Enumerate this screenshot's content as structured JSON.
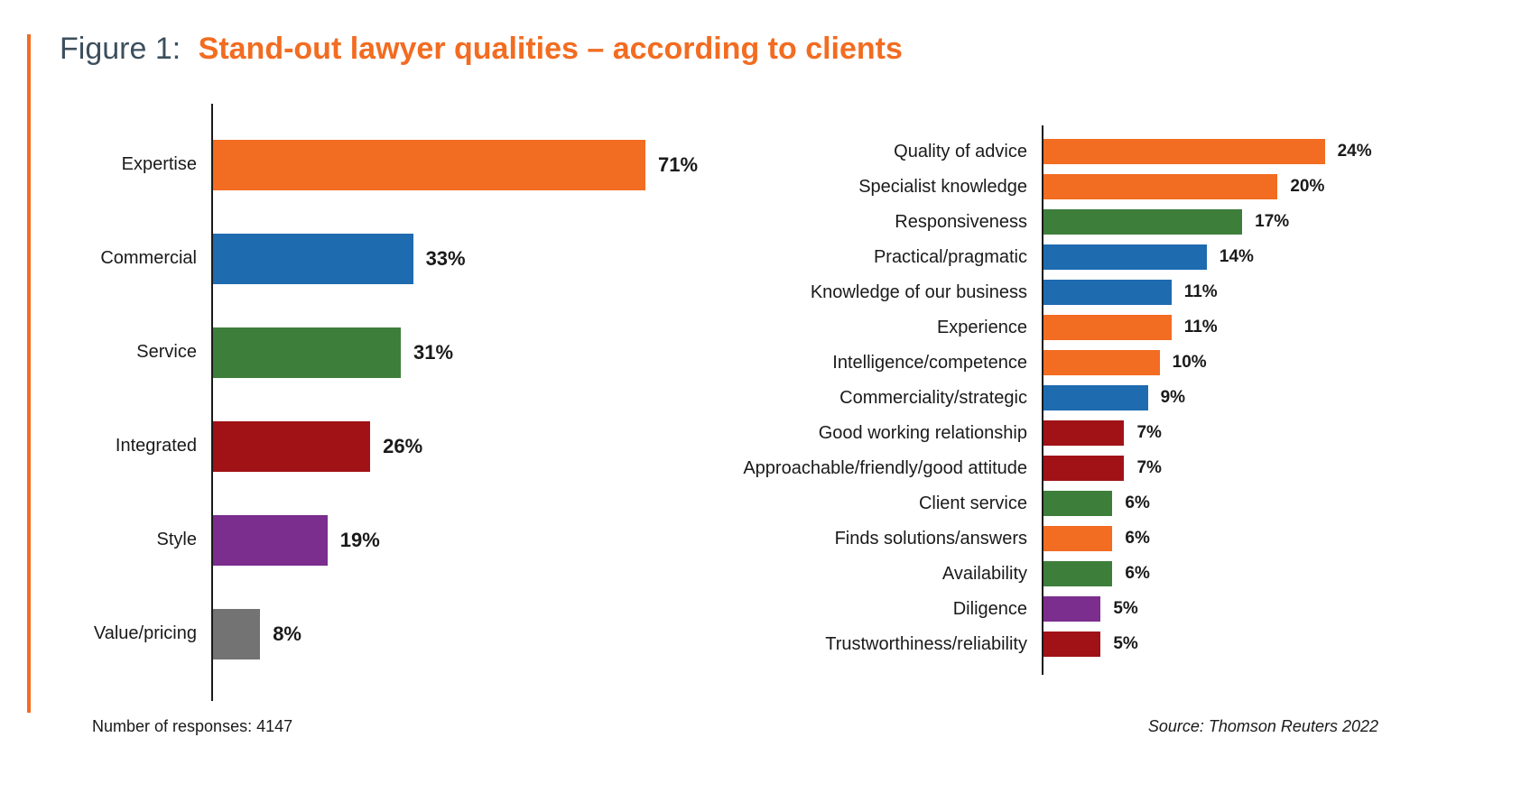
{
  "title": {
    "prefix": "Figure 1:",
    "main": "Stand-out lawyer qualities – according to clients"
  },
  "footer": {
    "responses": "Number of responses: 4147",
    "source": "Source: Thomson Reuters 2022"
  },
  "colors": {
    "orange": "#F26C21",
    "blue": "#1E6BB0",
    "green": "#3E7E3B",
    "red": "#A01216",
    "purple": "#7B2E8E",
    "gray": "#737373",
    "axis": "#1a1a1a",
    "title_prefix": "#3d4f5c"
  },
  "chart_data": [
    {
      "type": "bar",
      "orientation": "horizontal",
      "title": "",
      "xlabel": "",
      "ylabel": "",
      "xmax": 80,
      "grid": false,
      "value_label_position": "end",
      "categories": [
        "Expertise",
        "Commercial",
        "Service",
        "Integrated",
        "Style",
        "Value/pricing"
      ],
      "values": [
        71,
        33,
        31,
        26,
        19,
        8
      ],
      "value_labels": [
        "71%",
        "33%",
        "31%",
        "26%",
        "19%",
        "8%"
      ],
      "bar_colors": [
        "orange",
        "blue",
        "green",
        "red",
        "purple",
        "gray"
      ]
    },
    {
      "type": "bar",
      "orientation": "horizontal",
      "title": "",
      "xlabel": "",
      "ylabel": "",
      "xmax": 30,
      "grid": false,
      "value_label_position": "end",
      "categories": [
        "Quality of advice",
        "Specialist knowledge",
        "Responsiveness",
        "Practical/pragmatic",
        "Knowledge of our business",
        "Experience",
        "Intelligence/competence",
        "Commerciality/strategic",
        "Good working relationship",
        "Approachable/friendly/good attitude",
        "Client service",
        "Finds solutions/answers",
        "Availability",
        "Diligence",
        "Trustworthiness/reliability"
      ],
      "values": [
        24,
        20,
        17,
        14,
        11,
        11,
        10,
        9,
        7,
        7,
        6,
        6,
        6,
        5,
        5
      ],
      "value_labels": [
        "24%",
        "20%",
        "17%",
        "14%",
        "11%",
        "11%",
        "10%",
        "9%",
        "7%",
        "7%",
        "6%",
        "6%",
        "6%",
        "5%",
        "5%"
      ],
      "bar_colors": [
        "orange",
        "orange",
        "green",
        "blue",
        "blue",
        "orange",
        "orange",
        "blue",
        "red",
        "red",
        "green",
        "orange",
        "green",
        "purple",
        "red"
      ]
    }
  ]
}
